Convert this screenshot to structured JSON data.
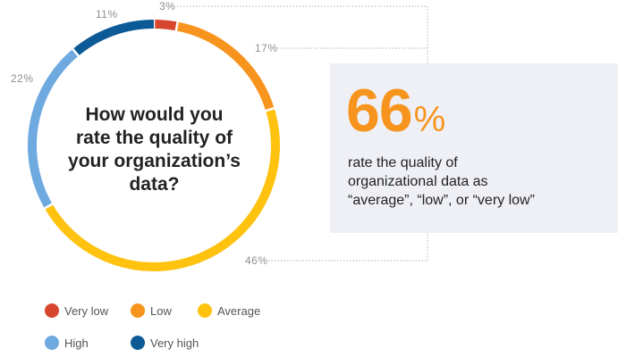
{
  "chart_data": {
    "type": "pie",
    "title": "How would you rate the quality of your organization’s data?",
    "categories": [
      "Very low",
      "Low",
      "Average",
      "High",
      "Very high"
    ],
    "values": [
      3,
      17,
      46,
      22,
      11
    ],
    "value_labels": [
      "3%",
      "17%",
      "46%",
      "22%",
      "11%"
    ],
    "colors": [
      "#d7462e",
      "#f7941e",
      "#fec20f",
      "#6ea9e0",
      "#0c5a96"
    ],
    "donut": true,
    "legend": "bottom"
  },
  "question": {
    "line1": "How would you",
    "line2": "rate the quality of",
    "line3": "your organization’s",
    "line4": "data?"
  },
  "callout": {
    "big_number": "66",
    "big_unit": "%",
    "line1": "rate the quality of",
    "line2": "organizational data as",
    "line3": "“average”, “low”, or “very low”"
  }
}
